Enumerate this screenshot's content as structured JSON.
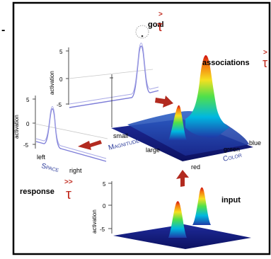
{
  "panel_marker": "-",
  "goal": {
    "label": "goal",
    "symbol_top": ">",
    "symbol_bottom": "τ"
  },
  "associations": {
    "label": "associations",
    "symbol_top": ">",
    "symbol_bottom": "τ"
  },
  "response": {
    "label": "response",
    "symbol_top": ">>",
    "symbol_bottom": "τ"
  },
  "input": {
    "label": "input"
  },
  "activation_label": "activation",
  "goal_plot": {
    "ticks": [
      "5",
      "0",
      "-5"
    ]
  },
  "space_plot": {
    "ticks": [
      "5",
      "0",
      "-5"
    ],
    "left": "left",
    "axis": "Space",
    "right": "right"
  },
  "magnitude_axis": {
    "small": "small",
    "axis": "Magnitude",
    "large": "large"
  },
  "color_axis": {
    "red": "red",
    "green": "green",
    "axis": "Color",
    "blue": "blue"
  },
  "input_plot": {
    "ticks": [
      "5",
      "0",
      "-5"
    ]
  },
  "colors": {
    "arrow": "#b22a1f",
    "tau": "#c0281c",
    "curve": "#7d7dd8",
    "floor": "#14197a"
  }
}
